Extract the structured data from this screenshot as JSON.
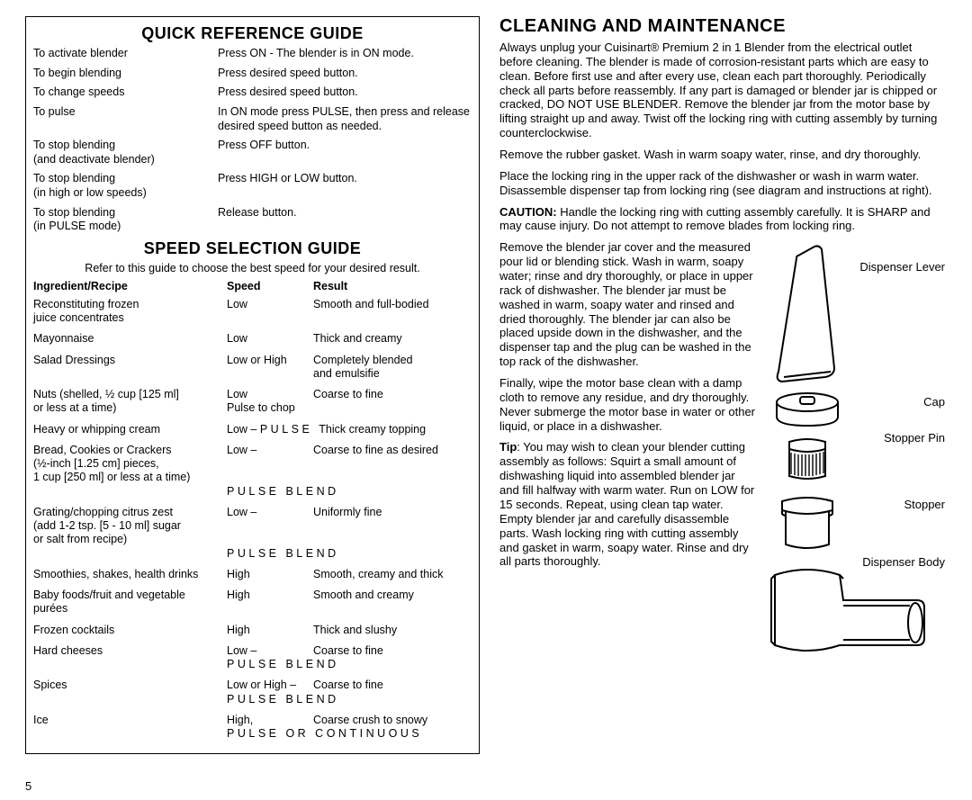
{
  "pageNumber": "5",
  "quickRef": {
    "title": "QUICK REFERENCE GUIDE",
    "rows": [
      {
        "l1": "To activate blender",
        "l2": "",
        "r1": "Press ON - The blender is in ON mode.",
        "r2": ""
      },
      {
        "l1": "To begin blending",
        "l2": "",
        "r1": "Press desired speed button.",
        "r2": ""
      },
      {
        "l1": "To change speeds",
        "l2": "",
        "r1": "Press desired speed button.",
        "r2": ""
      },
      {
        "l1": "To pulse",
        "l2": "",
        "r1": "In ON mode press PULSE, then press and release",
        "r2": "desired speed button as needed."
      },
      {
        "l1": "To stop blending",
        "l2": "(and deactivate blender)",
        "r1": "Press OFF button.",
        "r2": ""
      },
      {
        "l1": "To stop blending",
        "l2": "(in high or low speeds)",
        "r1": "Press HIGH or LOW button.",
        "r2": ""
      },
      {
        "l1": "To stop blending",
        "l2": "(in PULSE mode)",
        "r1": "Release button.",
        "r2": ""
      }
    ]
  },
  "speedGuide": {
    "title": "SPEED SELECTION GUIDE",
    "subtitle": "Refer to this guide to choose the best speed for your desired result.",
    "headers": {
      "ing": "Ingredient/Recipe",
      "spd": "Speed",
      "res": "Result"
    },
    "rows": [
      {
        "ing1": "Reconstituting frozen",
        "ing2": "juice concentrates",
        "ing3": "",
        "spd1": "Low",
        "spd2": "",
        "res1": "Smooth and full-bodied",
        "res2": ""
      },
      {
        "ing1": "Mayonnaise",
        "ing2": "",
        "ing3": "",
        "spd1": "Low",
        "spd2": "",
        "res1": "Thick and creamy",
        "res2": ""
      },
      {
        "ing1": "Salad Dressings",
        "ing2": "",
        "ing3": "",
        "spd1": "Low or High",
        "spd2": "",
        "res1": "Completely blended",
        "res2": "and emulsifie"
      },
      {
        "ing1": "Nuts (shelled, ½ cup [125 ml]",
        "ing2": "or less at a time)",
        "ing3": "",
        "spd1": "Low",
        "spd2": "Pulse to chop",
        "res1": "Coarse to fine",
        "res2": ""
      },
      {
        "ing1": "Heavy or whipping cream",
        "ing2": "",
        "ing3": "",
        "spd1": "Low – ",
        "spd2": "",
        "res1": "Thick creamy topping",
        "res2": "",
        "pulse1": "PULSE",
        "inline": true
      },
      {
        "ing1": "Bread, Cookies or Crackers",
        "ing2": "(½-inch [1.25 cm] pieces,",
        "ing3": "1 cup [250 ml] or less at a time)",
        "spd1": "Low –",
        "spd2": "",
        "res1": "Coarse to fine as desired",
        "res2": "",
        "pulse2": "PULSE BLEND"
      },
      {
        "ing1": "Grating/chopping citrus zest",
        "ing2": "(add 1-2 tsp. [5 - 10 ml] sugar",
        "ing3": "or salt from recipe)",
        "spd1": "Low –",
        "spd2": "",
        "res1": "Uniformly fine",
        "res2": "",
        "pulse2": "PULSE BLEND"
      },
      {
        "ing1": "Smoothies, shakes, health drinks",
        "ing2": "",
        "ing3": "",
        "spd1": "High",
        "spd2": "",
        "res1": "Smooth, creamy and thick",
        "res2": ""
      },
      {
        "ing1": "Baby foods/fruit and vegetable",
        "ing2": "purées",
        "ing3": "",
        "spd1": "High",
        "spd2": "",
        "res1": "Smooth and creamy",
        "res2": ""
      },
      {
        "ing1": "Frozen cocktails",
        "ing2": "",
        "ing3": "",
        "spd1": "High",
        "spd2": "",
        "res1": "Thick and slushy",
        "res2": ""
      },
      {
        "ing1": "Hard cheeses",
        "ing2": "",
        "ing3": "",
        "spd1": "Low –",
        "spd2": "",
        "res1": "Coarse to fine",
        "res2": "",
        "pulse2": "PULSE BLEND"
      },
      {
        "ing1": "Spices",
        "ing2": "",
        "ing3": "",
        "spd1": "Low or High –",
        "spd2": "",
        "res1": "Coarse to fine",
        "res2": "",
        "pulse2": "PULSE BLEND"
      },
      {
        "ing1": "Ice",
        "ing2": "",
        "ing3": "",
        "spd1": "High,",
        "spd2": "",
        "res1": "Coarse crush to snowy",
        "res2": "",
        "pulse2": "PULSE OR CONTINUOUS"
      }
    ]
  },
  "cleaning": {
    "title": "CLEANING AND MAINTENANCE",
    "p1": "Always unplug your Cuisinart® Premium 2 in 1 Blender from the electrical outlet before cleaning. The blender is made of corrosion-resistant parts which are easy to clean. Before first use and after every use, clean each part thoroughly. Periodically check all parts before reassembly. If any part is damaged or blender jar is chipped or cracked, DO NOT USE BLENDER. Remove the blender jar from the motor base by lifting straight up and away. Twist off the locking ring with cutting assembly by turning counterclockwise.",
    "p2": "Remove the rubber gasket. Wash in warm soapy water, rinse, and dry thoroughly.",
    "p3": "Place the locking ring in the upper rack of the dishwasher or wash in warm water. Disassemble dispenser tap from locking ring (see diagram and instructions at right).",
    "p4a": "CAUTION:",
    "p4b": " Handle the locking ring with cutting assembly carefully. It is SHARP and may cause injury. Do not attempt to remove blades from locking ring.",
    "p5": "Remove the blender jar cover and the measured pour lid or blending stick. Wash in warm, soapy water; rinse and dry thoroughly, or place in upper rack of dishwasher. The blender jar must be washed in warm, soapy water and rinsed and dried thoroughly. The blender jar can also be placed upside down in the dishwasher, and the dispenser tap and the plug can be washed in the top rack of the dishwasher.",
    "p6": "Finally, wipe the motor base clean with a damp cloth to remove any residue, and dry thoroughly. Never submerge the motor base in water or other liquid, or place in a dishwasher.",
    "p7a": "Tip",
    "p7b": ": You may wish to clean your blender cutting assembly as follows: Squirt a small amount of dishwashing liquid into assembled blender jar and fill halfway with warm water. Run on LOW for 15 seconds. Repeat, using clean tap water. Empty blender jar and carefully disassemble parts. Wash locking ring with cutting assembly and gasket in warm, soapy water. Rinse and dry all parts thoroughly.",
    "labels": {
      "dispLever": "Dispenser Lever",
      "cap": "Cap",
      "stopperPin": "Stopper Pin",
      "stopper": "Stopper",
      "dispBody": "Dispenser Body"
    }
  }
}
